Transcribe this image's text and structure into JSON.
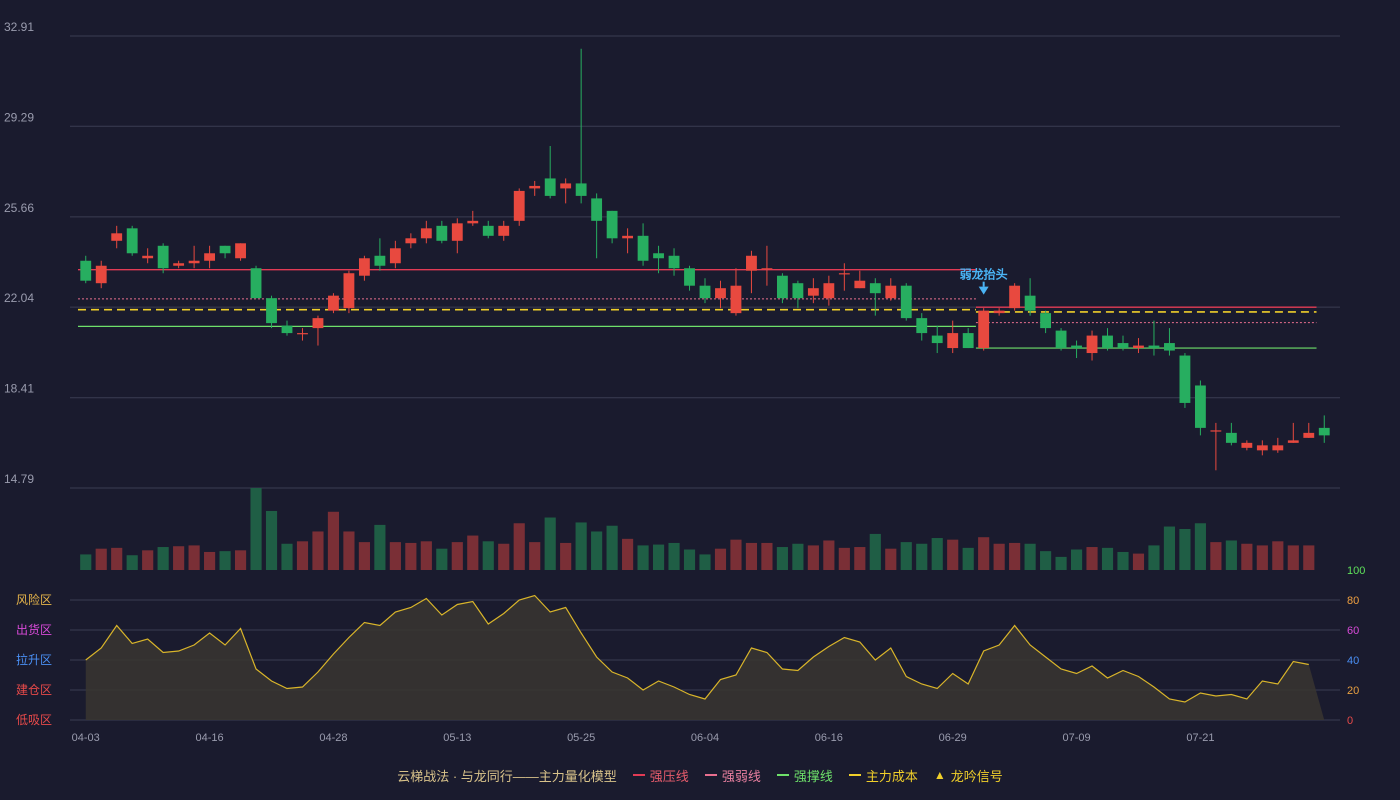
{
  "colors": {
    "background": "#1a1b2e",
    "grid": "#3a3d52",
    "axis_text": "#9a9cae",
    "up": "#e8493f",
    "down": "#27ae60",
    "up_volume": "#7a2f36",
    "down_volume": "#1f5e45",
    "resist": "#e23b55",
    "weak": "#e86f8f",
    "support": "#6ee06a",
    "cost": "#f0cf2a",
    "oscillator": "#d9b52a",
    "signal": "#4ab3f4"
  },
  "legend": {
    "model": "云梯战法 · 与龙同行——主力量化模型",
    "resist": "强压线",
    "weak": "强弱线",
    "support": "强撑线",
    "cost": "主力成本",
    "signal": "龙吟信号"
  },
  "zones": {
    "risk": "风险区",
    "distribute": "出货区",
    "pull": "拉升区",
    "build": "建仓区",
    "absorb": "低吸区"
  },
  "zone_colors": [
    "#e7b54a",
    "#d84ad8",
    "#4a8ff4",
    "#e84a4a",
    "#e84a4a"
  ],
  "osc_tick_colors": [
    "#5ee05a",
    "#f0a040",
    "#d84ad8",
    "#4a8ff4",
    "#e8a040",
    "#e84a4a"
  ],
  "chart_data": [
    {
      "type": "candlestick",
      "y_ticks": [
        "32.91",
        "29.29",
        "25.66",
        "22.04",
        "18.41",
        "14.79"
      ],
      "ylim": [
        14.79,
        32.91
      ],
      "x_tick_labels": [
        {
          "index": 0,
          "label": "04-03"
        },
        {
          "index": 8,
          "label": "04-16"
        },
        {
          "index": 16,
          "label": "04-28"
        },
        {
          "index": 24,
          "label": "05-13"
        },
        {
          "index": 32,
          "label": "05-25"
        },
        {
          "index": 40,
          "label": "06-04"
        },
        {
          "index": 48,
          "label": "06-16"
        },
        {
          "index": 56,
          "label": "06-29"
        },
        {
          "index": 64,
          "label": "07-09"
        },
        {
          "index": 72,
          "label": "07-21"
        }
      ],
      "candles": [
        [
          23.9,
          23.1,
          24.1,
          23.0
        ],
        [
          23.0,
          23.7,
          23.9,
          22.8
        ],
        [
          24.7,
          25.0,
          25.3,
          24.4
        ],
        [
          25.2,
          24.2,
          25.3,
          24.1
        ],
        [
          24.0,
          24.1,
          24.4,
          23.8
        ],
        [
          24.5,
          23.6,
          24.6,
          23.4
        ],
        [
          23.7,
          23.8,
          23.9,
          23.6
        ],
        [
          23.8,
          23.9,
          24.5,
          23.6
        ],
        [
          23.9,
          24.2,
          24.5,
          23.6
        ],
        [
          24.5,
          24.2,
          24.5,
          24.0
        ],
        [
          24.0,
          24.6,
          24.6,
          23.9
        ],
        [
          23.6,
          22.4,
          23.7,
          22.4
        ],
        [
          22.4,
          21.4,
          22.5,
          21.2
        ],
        [
          21.3,
          21.0,
          21.5,
          20.9
        ],
        [
          21.0,
          21.0,
          21.2,
          20.7
        ],
        [
          21.2,
          21.6,
          21.7,
          20.5
        ],
        [
          21.9,
          22.5,
          22.6,
          21.8
        ],
        [
          22.0,
          23.4,
          23.5,
          21.8
        ],
        [
          23.3,
          24.0,
          24.1,
          23.1
        ],
        [
          24.1,
          23.7,
          24.8,
          23.5
        ],
        [
          23.8,
          24.4,
          24.7,
          23.6
        ],
        [
          24.6,
          24.8,
          25.0,
          24.4
        ],
        [
          24.8,
          25.2,
          25.5,
          24.6
        ],
        [
          25.3,
          24.7,
          25.5,
          24.6
        ],
        [
          24.7,
          25.4,
          25.6,
          24.2
        ],
        [
          25.4,
          25.5,
          25.9,
          25.3
        ],
        [
          25.3,
          24.9,
          25.5,
          24.8
        ],
        [
          24.9,
          25.3,
          25.5,
          24.7
        ],
        [
          25.5,
          26.7,
          26.8,
          25.3
        ],
        [
          26.8,
          26.9,
          27.1,
          26.5
        ],
        [
          27.2,
          26.5,
          28.5,
          26.4
        ],
        [
          26.8,
          27.0,
          27.2,
          26.2
        ],
        [
          27.0,
          26.5,
          32.4,
          26.2
        ],
        [
          26.4,
          25.5,
          26.6,
          24.0
        ],
        [
          25.9,
          24.8,
          25.9,
          24.6
        ],
        [
          24.8,
          24.9,
          25.2,
          24.2
        ],
        [
          24.9,
          23.9,
          25.4,
          23.7
        ],
        [
          24.2,
          24.0,
          24.5,
          23.4
        ],
        [
          24.1,
          23.6,
          24.4,
          23.3
        ],
        [
          23.6,
          22.9,
          23.7,
          22.7
        ],
        [
          22.9,
          22.4,
          23.2,
          22.2
        ],
        [
          22.4,
          22.8,
          23.1,
          22.0
        ],
        [
          21.8,
          22.9,
          23.6,
          21.7
        ],
        [
          23.5,
          24.1,
          24.3,
          22.6
        ],
        [
          23.6,
          23.6,
          24.5,
          22.9
        ],
        [
          23.3,
          22.4,
          23.4,
          22.2
        ],
        [
          23.0,
          22.4,
          23.1,
          22.0
        ],
        [
          22.5,
          22.8,
          23.2,
          22.2
        ],
        [
          22.4,
          23.0,
          23.3,
          22.1
        ],
        [
          23.4,
          23.4,
          23.8,
          22.7
        ],
        [
          22.8,
          23.1,
          23.5,
          22.8
        ],
        [
          23.0,
          22.6,
          23.2,
          21.7
        ],
        [
          22.4,
          22.9,
          23.2,
          22.3
        ],
        [
          22.9,
          21.6,
          23.0,
          21.5
        ],
        [
          21.6,
          21.0,
          21.8,
          20.7
        ],
        [
          20.9,
          20.6,
          21.3,
          20.2
        ],
        [
          20.4,
          21.0,
          21.5,
          20.2
        ],
        [
          21.0,
          20.4,
          21.2,
          20.4
        ],
        [
          20.4,
          21.9,
          22.0,
          20.3
        ],
        [
          21.8,
          21.9,
          22.0,
          21.7
        ],
        [
          22.0,
          22.9,
          23.0,
          21.9
        ],
        [
          22.5,
          21.9,
          23.2,
          21.7
        ],
        [
          21.8,
          21.2,
          21.9,
          21.0
        ],
        [
          21.1,
          20.4,
          21.2,
          20.3
        ],
        [
          20.5,
          20.4,
          20.7,
          20.0
        ],
        [
          20.2,
          20.9,
          21.1,
          19.9
        ],
        [
          20.9,
          20.4,
          21.2,
          20.3
        ],
        [
          20.6,
          20.4,
          20.9,
          20.3
        ],
        [
          20.4,
          20.5,
          20.8,
          20.2
        ],
        [
          20.5,
          20.4,
          21.5,
          20.1
        ],
        [
          20.6,
          20.3,
          21.2,
          20.1
        ],
        [
          20.1,
          18.2,
          20.2,
          18.0
        ],
        [
          18.9,
          17.2,
          19.1,
          16.9
        ],
        [
          17.1,
          17.1,
          17.4,
          15.5
        ],
        [
          17.0,
          16.6,
          17.4,
          16.5
        ],
        [
          16.4,
          16.6,
          16.7,
          16.3
        ],
        [
          16.3,
          16.5,
          16.7,
          16.1
        ],
        [
          16.3,
          16.5,
          16.8,
          16.2
        ],
        [
          16.6,
          16.7,
          17.4,
          16.6
        ],
        [
          16.8,
          17.0,
          17.4,
          16.8
        ],
        [
          17.2,
          16.9,
          17.7,
          16.6
        ]
      ],
      "volumes": [
        19,
        26,
        27,
        18,
        24,
        28,
        29,
        30,
        22,
        23,
        24,
        100,
        72,
        32,
        35,
        47,
        71,
        47,
        34,
        55,
        34,
        33,
        35,
        26,
        34,
        42,
        35,
        32,
        57,
        34,
        64,
        33,
        58,
        47,
        54,
        38,
        30,
        31,
        33,
        25,
        19,
        26,
        37,
        33,
        33,
        28,
        32,
        30,
        36,
        27,
        28,
        44,
        26,
        34,
        32,
        39,
        37,
        27,
        40,
        32,
        33,
        32,
        23,
        16,
        25,
        28,
        27,
        22,
        20,
        30,
        53,
        50,
        57,
        34,
        36,
        32,
        30,
        35,
        30,
        30
      ],
      "lines": {
        "resist": [
          {
            "from": 0,
            "to": 57,
            "value": 23.54
          },
          {
            "from": 58,
            "to": 79,
            "value": 22.04
          }
        ],
        "weak": [
          {
            "from": 0,
            "to": 57,
            "value": 22.37
          },
          {
            "from": 58,
            "to": 79,
            "value": 21.42
          }
        ],
        "cost": [
          {
            "from": 0,
            "to": 57,
            "value": 21.94
          },
          {
            "from": 58,
            "to": 79,
            "value": 21.85
          }
        ],
        "support": [
          {
            "from": 0,
            "to": 57,
            "value": 21.27
          },
          {
            "from": 58,
            "to": 79,
            "value": 20.4
          }
        ]
      },
      "signal": {
        "index": 58,
        "text": "弱龙抬头",
        "price": 22.3
      }
    },
    {
      "type": "area",
      "y_ticks": [
        "100",
        "80",
        "60",
        "40",
        "20",
        "0"
      ],
      "ylim": [
        0,
        100
      ],
      "values": [
        40,
        48,
        63,
        51,
        54,
        45,
        46,
        50,
        58,
        50,
        61,
        34,
        26,
        21,
        22,
        32,
        44,
        55,
        65,
        63,
        72,
        75,
        81,
        70,
        77,
        79,
        64,
        71,
        80,
        83,
        72,
        75,
        58,
        42,
        32,
        28,
        20,
        26,
        22,
        17,
        14,
        27,
        30,
        48,
        45,
        34,
        33,
        42,
        49,
        55,
        52,
        40,
        48,
        29,
        24,
        21,
        31,
        24,
        46,
        50,
        63,
        50,
        42,
        34,
        31,
        36,
        28,
        33,
        29,
        22,
        14,
        12,
        18,
        16,
        17,
        14,
        26,
        24,
        39,
        37
      ]
    }
  ]
}
